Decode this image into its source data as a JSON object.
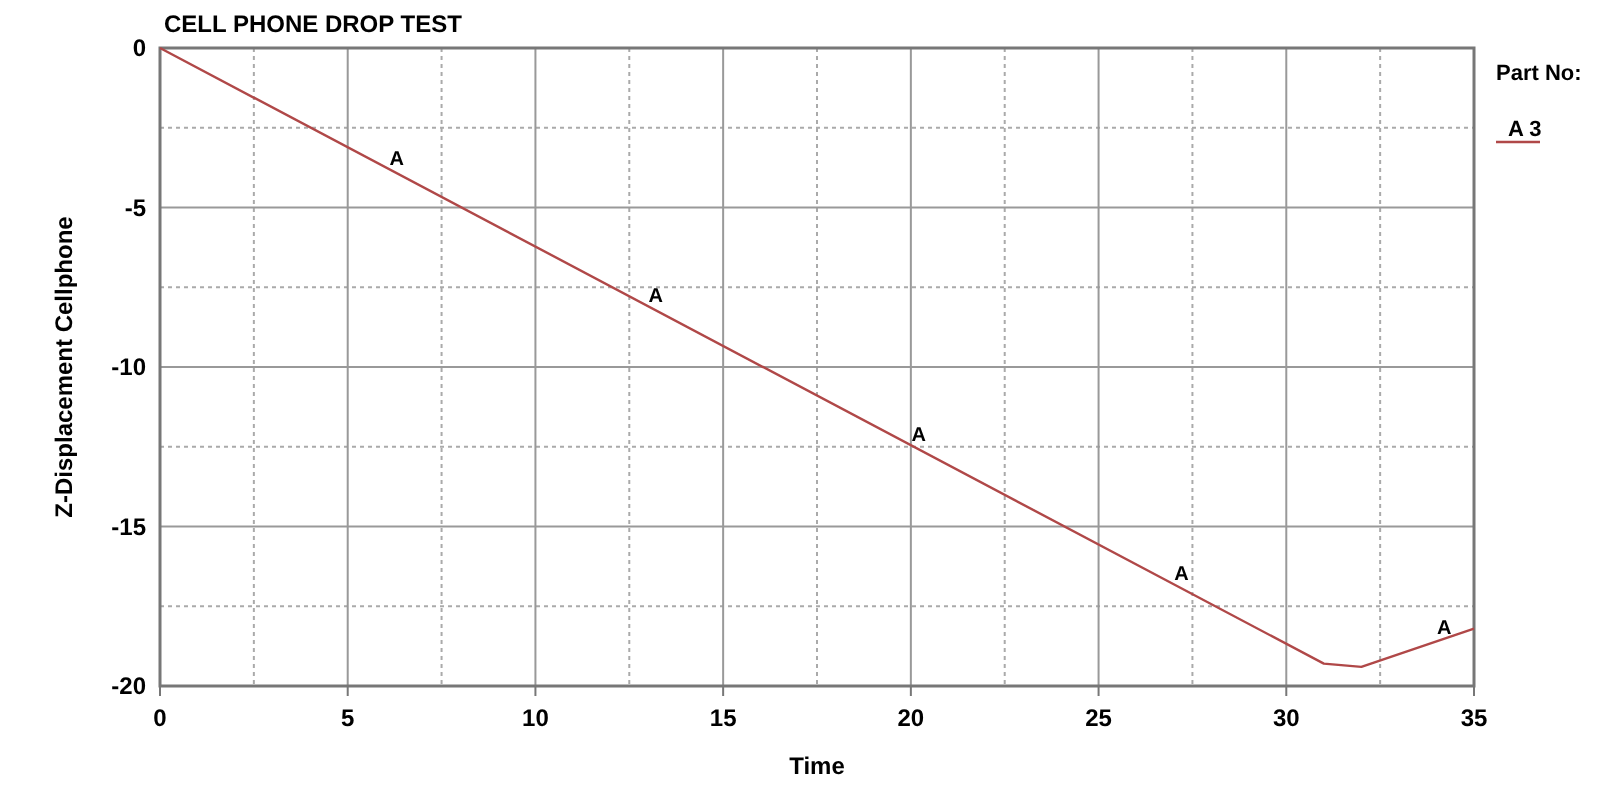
{
  "chart_data": {
    "type": "line",
    "title": "CELL PHONE DROP TEST",
    "xlabel": "Time",
    "ylabel": "Z-Displacement Cellphone",
    "legend_title": "Part No:",
    "legend": "right",
    "xlim": [
      0,
      35
    ],
    "xticks": [
      0,
      5,
      10,
      15,
      20,
      25,
      30,
      35
    ],
    "ylim": [
      -20,
      0
    ],
    "yticks": [
      -20,
      -15,
      -10,
      -5,
      0
    ],
    "grid": true,
    "marker": "none",
    "line_style": "solid",
    "series": [
      {
        "name": "A 3",
        "color": "#b04848",
        "x": [
          0,
          31,
          32,
          35
        ],
        "values": [
          0,
          -19.3,
          -19.4,
          -18.2
        ]
      }
    ],
    "annotations": [
      {
        "text": "A",
        "x": 6.2,
        "y": -3.86
      },
      {
        "text": "A",
        "x": 13.1,
        "y": -8.16
      },
      {
        "text": "A",
        "x": 20.1,
        "y": -12.51
      },
      {
        "text": "A",
        "x": 27.1,
        "y": -16.87
      },
      {
        "text": "A",
        "x": 34.1,
        "y": -18.56
      }
    ]
  }
}
